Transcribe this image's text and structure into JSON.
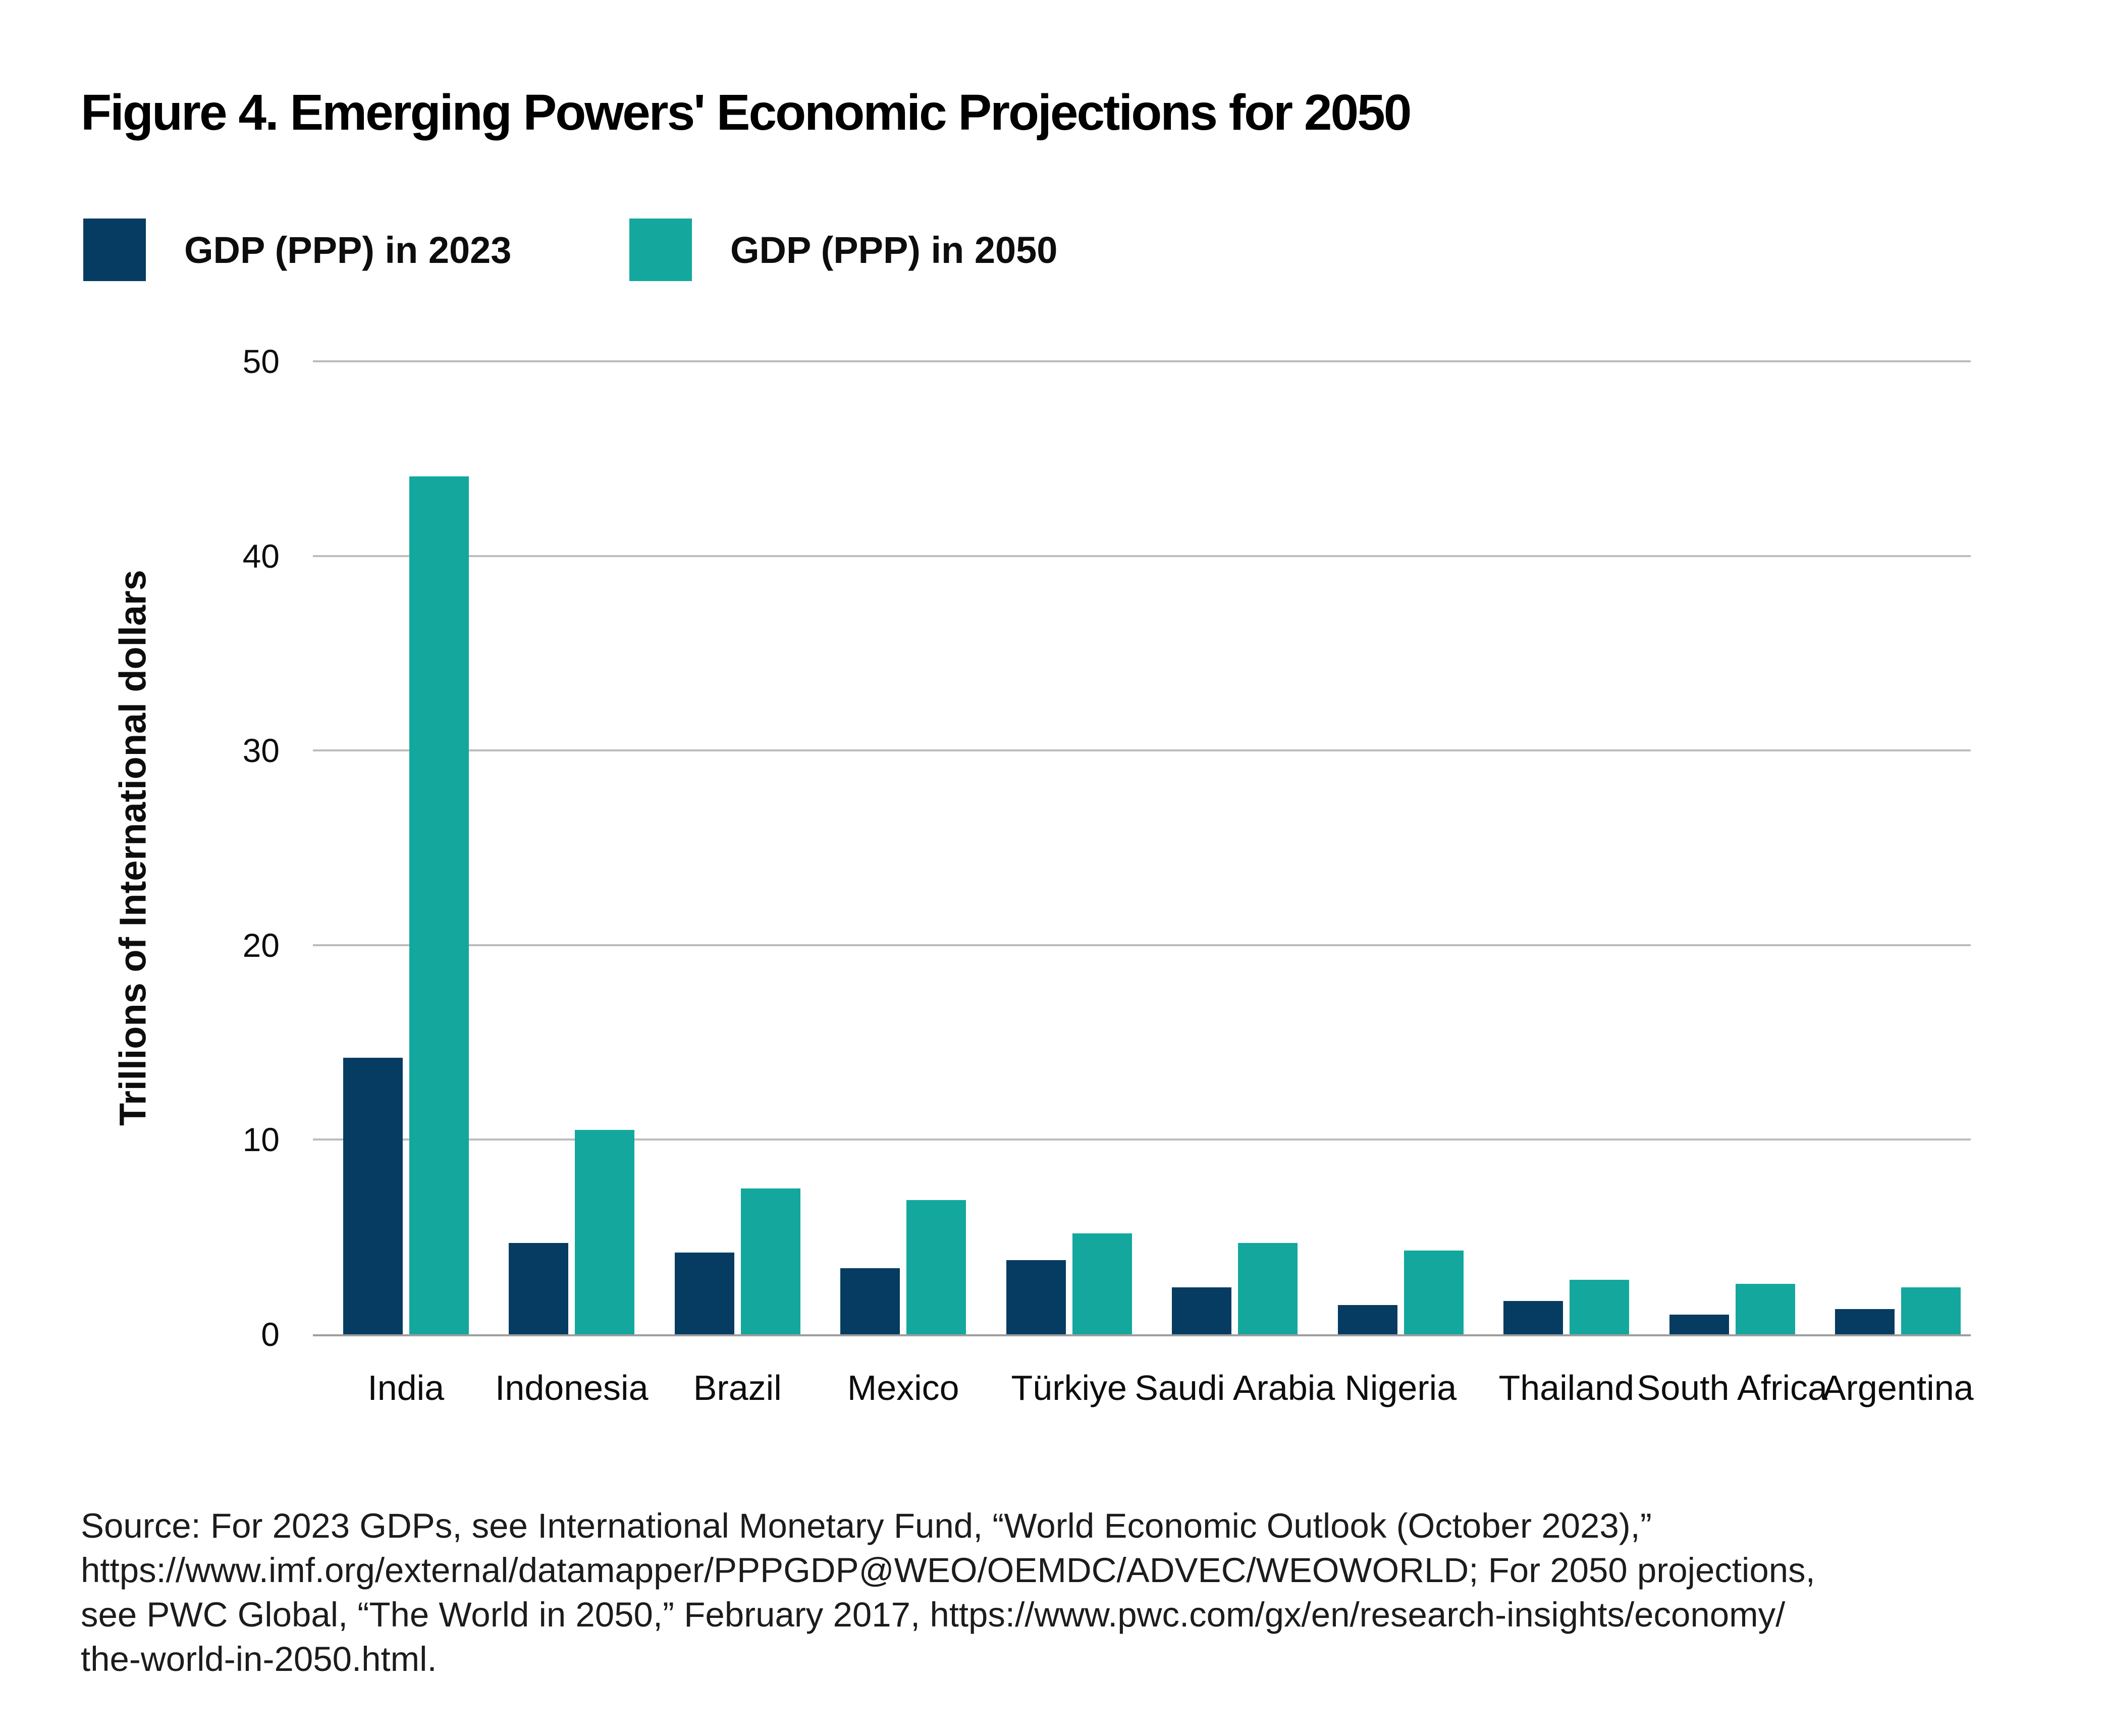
{
  "title": "Figure 4. Emerging Powers' Economic Projections for 2050",
  "legend": {
    "items": [
      {
        "label": "GDP (PPP) in 2023",
        "color": "#063C61"
      },
      {
        "label": "GDP (PPP) in 2050",
        "color": "#14A79D"
      }
    ]
  },
  "chart_data": {
    "type": "bar",
    "title": "Figure 4. Emerging Powers' Economic Projections for 2050",
    "categories": [
      "India",
      "Indonesia",
      "Brazil",
      "Mexico",
      "Türkiye",
      "Saudi Arabia",
      "Nigeria",
      "Thailand",
      "South Africa",
      "Argentina"
    ],
    "series": [
      {
        "name": "GDP (PPP) in 2023",
        "color": "#063C61",
        "values": [
          14.2,
          4.7,
          4.2,
          3.4,
          3.8,
          2.4,
          1.5,
          1.7,
          1.0,
          1.3
        ]
      },
      {
        "name": "GDP (PPP) in 2050",
        "color": "#14A79D",
        "values": [
          44.1,
          10.5,
          7.5,
          6.9,
          5.2,
          4.7,
          4.3,
          2.8,
          2.6,
          2.4
        ]
      }
    ],
    "xlabel": "",
    "ylabel": "Trillions of International dollars",
    "ylim": [
      0,
      50
    ],
    "yticks": [
      0,
      10,
      20,
      30,
      40,
      50
    ],
    "grid": "horizontal",
    "legend_position": "top-left",
    "gridline_color": "#bcbcbc",
    "axis_line_color": "#9e9e9e"
  },
  "source_lines": [
    "Source: For 2023 GDPs, see International Monetary Fund, “World Economic Outlook (October 2023),”",
    "https://www.imf.org/external/datamapper/PPPGDP@WEO/OEMDC/ADVEC/WEOWORLD; For 2050 projections,",
    "see PWC Global, “The World in 2050,” February 2017, https://www.pwc.com/gx/en/research-insights/economy/",
    "the-world-in-2050.html."
  ]
}
